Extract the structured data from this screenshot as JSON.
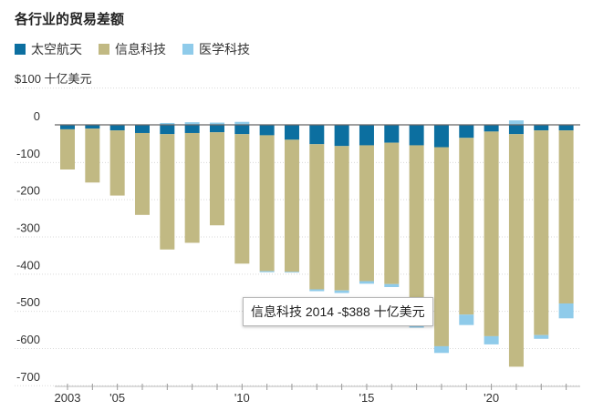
{
  "title": "各行业的贸易差额",
  "legend": [
    {
      "label": "太空航天",
      "color": "#0c6fa0"
    },
    {
      "label": "信息科技",
      "color": "#c1b983"
    },
    {
      "label": "医学科技",
      "color": "#8fcbea"
    }
  ],
  "unit_label": "$100 十亿美元",
  "tooltip": "信息科技 2014 -$388 十亿美元",
  "chart_data": {
    "type": "bar",
    "stacked": true,
    "title": "各行业的贸易差额",
    "ylabel": "十亿美元",
    "ylim": [
      -700,
      100
    ],
    "yticks": [
      100,
      0,
      -100,
      -200,
      -300,
      -400,
      -500,
      -600,
      -700
    ],
    "ytick_labels": [
      "$100 十亿美元",
      "0",
      "-100",
      "-200",
      "-300",
      "-400",
      "-500",
      "-600",
      "-700"
    ],
    "xtick_labels": [
      {
        "year": 2003,
        "label": "2003"
      },
      {
        "year": 2005,
        "label": "'05"
      },
      {
        "year": 2010,
        "label": "'10"
      },
      {
        "year": 2015,
        "label": "'15"
      },
      {
        "year": 2020,
        "label": "'20"
      }
    ],
    "grid": true,
    "legend_position": "top-left",
    "categories": [
      2003,
      2004,
      2005,
      2006,
      2007,
      2008,
      2009,
      2010,
      2011,
      2012,
      2013,
      2014,
      2015,
      2016,
      2017,
      2018,
      2019,
      2020,
      2021,
      2022,
      2023
    ],
    "series": [
      {
        "name": "太空航天",
        "color": "#0c6fa0",
        "values": [
          -12,
          -10,
          -15,
          -22,
          -25,
          -22,
          -20,
          -25,
          -28,
          -40,
          -52,
          -57,
          -55,
          -48,
          -55,
          -60,
          -35,
          -18,
          -25,
          -15,
          -15
        ]
      },
      {
        "name": "信息科技",
        "color": "#c1b983",
        "values": [
          -108,
          -145,
          -175,
          -220,
          -310,
          -295,
          -250,
          -348,
          -365,
          -355,
          -390,
          -388,
          -365,
          -380,
          -475,
          -535,
          -475,
          -550,
          -625,
          -550,
          -465
        ]
      },
      {
        "name": "医学科技",
        "color": "#8fcbea",
        "values": [
          0,
          0,
          0,
          0,
          5,
          7,
          6,
          8,
          -3,
          -2,
          -5,
          -7,
          -7,
          -8,
          -15,
          -18,
          -28,
          -22,
          12,
          -10,
          -40
        ]
      }
    ],
    "highlight": {
      "series": "信息科技",
      "year": 2014,
      "value": -388
    }
  }
}
